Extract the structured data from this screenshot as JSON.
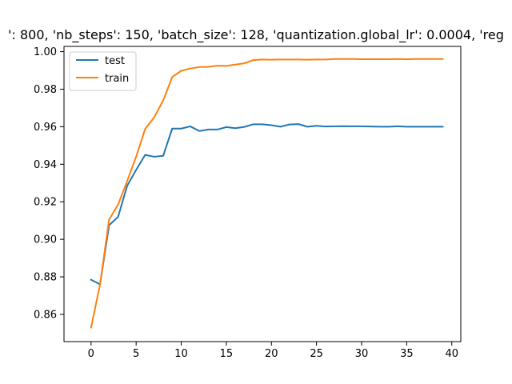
{
  "chart_data": {
    "type": "line",
    "title": "': 800, 'nb_steps': 150, 'batch_size': 128, 'quantization.global_lr': 0.0004, 'reg",
    "xlabel": "",
    "ylabel": "",
    "xlim": [
      -3.0,
      41.0
    ],
    "ylim": [
      0.8455,
      1.0028
    ],
    "x_ticks": [
      0,
      5,
      10,
      15,
      20,
      25,
      30,
      35,
      40
    ],
    "y_ticks": [
      0.86,
      0.88,
      0.9,
      0.92,
      0.94,
      0.96,
      0.98,
      1.0
    ],
    "y_tick_labels": [
      "0.86",
      "0.88",
      "0.90",
      "0.92",
      "0.94",
      "0.96",
      "0.98",
      "1.00"
    ],
    "grid": false,
    "legend_position": "top-left",
    "x": [
      0,
      1,
      2,
      3,
      4,
      5,
      6,
      7,
      8,
      9,
      10,
      11,
      12,
      13,
      14,
      15,
      16,
      17,
      18,
      19,
      20,
      21,
      22,
      23,
      24,
      25,
      26,
      27,
      28,
      29,
      30,
      31,
      32,
      33,
      34,
      35,
      36,
      37,
      38,
      39
    ],
    "series": [
      {
        "name": "test",
        "color": "#1f77b4",
        "values": [
          0.8785,
          0.876,
          0.9075,
          0.912,
          0.9285,
          0.937,
          0.945,
          0.944,
          0.9445,
          0.959,
          0.959,
          0.9602,
          0.9577,
          0.9585,
          0.9585,
          0.9598,
          0.9592,
          0.9599,
          0.9613,
          0.9613,
          0.9608,
          0.96,
          0.9612,
          0.9614,
          0.96,
          0.9605,
          0.9601,
          0.9602,
          0.9603,
          0.9602,
          0.9602,
          0.9601,
          0.96,
          0.96,
          0.9602,
          0.96,
          0.96,
          0.96,
          0.96,
          0.96
        ]
      },
      {
        "name": "train",
        "color": "#ff7f0e",
        "values": [
          0.853,
          0.876,
          0.9105,
          0.9185,
          0.931,
          0.944,
          0.9588,
          0.965,
          0.974,
          0.9865,
          0.9898,
          0.991,
          0.9918,
          0.9919,
          0.9925,
          0.9924,
          0.9931,
          0.9938,
          0.9955,
          0.9958,
          0.9957,
          0.9958,
          0.9958,
          0.9958,
          0.9957,
          0.9958,
          0.9958,
          0.9961,
          0.9961,
          0.9961,
          0.996,
          0.996,
          0.996,
          0.996,
          0.9961,
          0.996,
          0.9961,
          0.9961,
          0.9961,
          0.9961
        ]
      }
    ]
  }
}
